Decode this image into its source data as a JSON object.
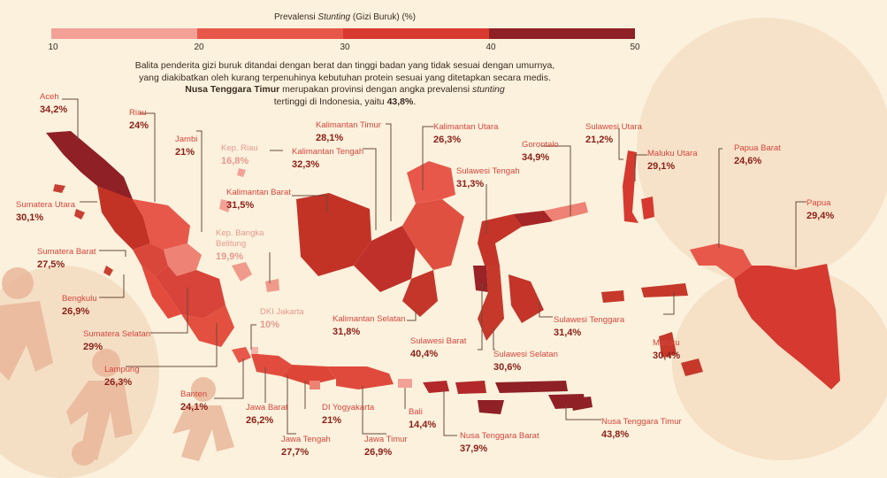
{
  "legend": {
    "title_prefix": "Prevalensi ",
    "title_italic": "Stunting",
    "title_suffix": " (Gizi Buruk) (%)",
    "ticks": [
      "10",
      "20",
      "30",
      "40",
      "50"
    ],
    "colors": [
      "#f3a196",
      "#e8584a",
      "#d93a30",
      "#8f2026"
    ]
  },
  "intro": {
    "line1": "Balita penderita gizi buruk ditandai dengan berat dan tinggi badan yang tidak sesuai dengan umurnya,",
    "line2": "yang diakibatkan oleh kurang terpenuhinya kebutuhan protein sesuai yang ditetapkan secara medis.",
    "line3_bold": "Nusa Tenggara Timur",
    "line3_rest": " merupakan provinsi dengan angka prevalensi ",
    "line3_italic": "stunting",
    "line4_pre": "tertinggi di Indonesia, yaitu ",
    "line4_bold": "43,8%",
    "line4_post": "."
  },
  "provinces": [
    {
      "name": "Aceh",
      "value": "34,2%"
    },
    {
      "name": "Riau",
      "value": "24%"
    },
    {
      "name": "Jambi",
      "value": "21%"
    },
    {
      "name": "Kep. Riau",
      "value": "16,8%"
    },
    {
      "name": "Sumatera Utara",
      "value": "30,1%"
    },
    {
      "name": "Sumatera Barat",
      "value": "27,5%"
    },
    {
      "name": "Kep. Bangka Belitung",
      "value": "19,9%"
    },
    {
      "name": "Bengkulu",
      "value": "26,9%"
    },
    {
      "name": "Sumatera Selatan",
      "value": "29%"
    },
    {
      "name": "Lampung",
      "value": "26,3%"
    },
    {
      "name": "Banten",
      "value": "24,1%"
    },
    {
      "name": "DKI Jakarta",
      "value": "10%"
    },
    {
      "name": "Jawa Barat",
      "value": "26,2%"
    },
    {
      "name": "DI Yogyakarta",
      "value": "21%"
    },
    {
      "name": "Jawa Tengah",
      "value": "27,7%"
    },
    {
      "name": "Jawa Timur",
      "value": "26,9%"
    },
    {
      "name": "Bali",
      "value": "14,4%"
    },
    {
      "name": "Nusa Tenggara Barat",
      "value": "37,9%"
    },
    {
      "name": "Nusa Tenggara Timur",
      "value": "43,8%"
    },
    {
      "name": "Kalimantan Barat",
      "value": "31,5%"
    },
    {
      "name": "Kalimantan Tengah",
      "value": "32,3%"
    },
    {
      "name": "Kalimantan Timur",
      "value": "28,1%"
    },
    {
      "name": "Kalimantan Utara",
      "value": "26,3%"
    },
    {
      "name": "Kalimantan Selatan",
      "value": "31,8%"
    },
    {
      "name": "Sulawesi Tengah",
      "value": "31,3%"
    },
    {
      "name": "Gorontalo",
      "value": "34,9%"
    },
    {
      "name": "Sulawesi Utara",
      "value": "21,2%"
    },
    {
      "name": "Sulawesi Barat",
      "value": "40,4%"
    },
    {
      "name": "Sulawesi Selatan",
      "value": "30,6%"
    },
    {
      "name": "Sulawesi Tenggara",
      "value": "31,4%"
    },
    {
      "name": "Maluku Utara",
      "value": "29,1%"
    },
    {
      "name": "Maluku",
      "value": "30,4%"
    },
    {
      "name": "Papua Barat",
      "value": "24,6%"
    },
    {
      "name": "Papua",
      "value": "29,4%"
    }
  ]
}
